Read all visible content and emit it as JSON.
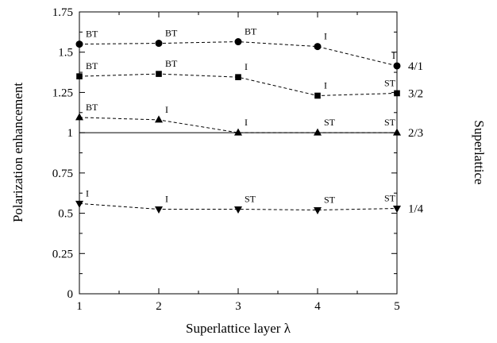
{
  "chart_data": {
    "type": "line",
    "title": "",
    "xlabel": "Superlattice layer λ",
    "ylabel": "Polarization enhancement",
    "right_label": "Superlattice",
    "x": [
      1,
      2,
      3,
      4,
      5
    ],
    "xlim": [
      1,
      5
    ],
    "ylim": [
      0,
      1.75
    ],
    "x_ticks": [
      "1",
      "2",
      "3",
      "4",
      "5"
    ],
    "y_ticks": [
      "0",
      "0.25",
      "0.5",
      "0.75",
      "1",
      "1.25",
      "1.5",
      "1.75"
    ],
    "y_tick_values": [
      0,
      0.25,
      0.5,
      0.75,
      1.0,
      1.25,
      1.5,
      1.75
    ],
    "grid": false,
    "reference_line": {
      "y": 1.0,
      "style": "solid"
    },
    "series": [
      {
        "label": "4/1",
        "marker": "circle",
        "line_style": "dashed",
        "values": [
          1.55,
          1.555,
          1.565,
          1.535,
          1.415
        ],
        "point_labels": [
          "BT",
          "BT",
          "BT",
          "I",
          "I"
        ]
      },
      {
        "label": "3/2",
        "marker": "square",
        "line_style": "dashed",
        "values": [
          1.35,
          1.365,
          1.345,
          1.23,
          1.245
        ],
        "point_labels": [
          "BT",
          "BT",
          "I",
          "I",
          "ST"
        ]
      },
      {
        "label": "2/3",
        "marker": "triangle-up",
        "line_style": "dashed",
        "values": [
          1.095,
          1.08,
          1.0,
          1.0,
          1.0
        ],
        "point_labels": [
          "BT",
          "I",
          "I",
          "ST",
          "ST"
        ]
      },
      {
        "label": "1/4",
        "marker": "triangle-down",
        "line_style": "dashed",
        "values": [
          0.56,
          0.525,
          0.525,
          0.52,
          0.53
        ],
        "point_labels": [
          "I",
          "I",
          "ST",
          "ST",
          "ST"
        ]
      }
    ]
  }
}
